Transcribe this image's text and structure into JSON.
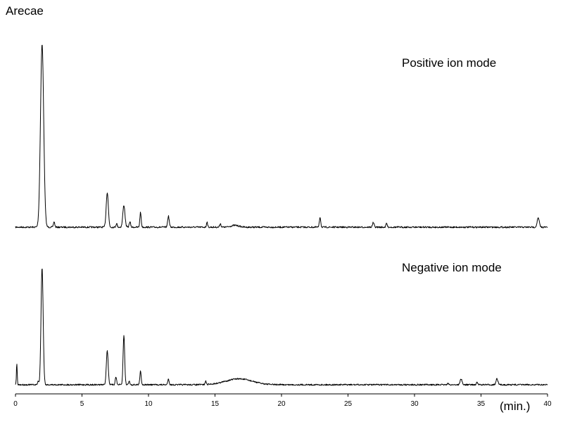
{
  "chart_data": {
    "type": "line",
    "title": "Arecae",
    "xunit": "(min.)",
    "xlim": [
      0,
      40
    ],
    "xticks": [
      0,
      5,
      10,
      15,
      20,
      25,
      30,
      35,
      40
    ],
    "ylim": [
      0,
      100
    ],
    "grid": false,
    "series": [
      {
        "name": "Positive ion mode",
        "peaks": [
          {
            "x": 2.0,
            "y": 100,
            "w": 0.12
          },
          {
            "x": 2.9,
            "y": 3,
            "w": 0.05
          },
          {
            "x": 6.9,
            "y": 19,
            "w": 0.08
          },
          {
            "x": 7.6,
            "y": 2,
            "w": 0.05
          },
          {
            "x": 8.15,
            "y": 12,
            "w": 0.08
          },
          {
            "x": 8.6,
            "y": 3,
            "w": 0.05
          },
          {
            "x": 9.4,
            "y": 8,
            "w": 0.05
          },
          {
            "x": 11.5,
            "y": 6,
            "w": 0.06
          },
          {
            "x": 14.4,
            "y": 3,
            "w": 0.04
          },
          {
            "x": 15.4,
            "y": 2,
            "w": 0.05
          },
          {
            "x": 16.5,
            "y": 1,
            "w": 0.3
          },
          {
            "x": 22.9,
            "y": 5.5,
            "w": 0.05
          },
          {
            "x": 26.9,
            "y": 2.5,
            "w": 0.06
          },
          {
            "x": 27.9,
            "y": 2,
            "w": 0.05
          },
          {
            "x": 39.3,
            "y": 5,
            "w": 0.08
          }
        ]
      },
      {
        "name": "Negative ion mode",
        "peaks": [
          {
            "x": 0.1,
            "y": 18,
            "w": 0.03
          },
          {
            "x": 1.7,
            "y": 3,
            "w": 0.04
          },
          {
            "x": 2.0,
            "y": 100,
            "w": 0.08
          },
          {
            "x": 6.9,
            "y": 29,
            "w": 0.07
          },
          {
            "x": 7.55,
            "y": 7,
            "w": 0.05
          },
          {
            "x": 8.15,
            "y": 42,
            "w": 0.06
          },
          {
            "x": 8.55,
            "y": 3,
            "w": 0.05
          },
          {
            "x": 9.4,
            "y": 12,
            "w": 0.05
          },
          {
            "x": 11.5,
            "y": 5,
            "w": 0.05
          },
          {
            "x": 14.3,
            "y": 3,
            "w": 0.04
          },
          {
            "x": 16.8,
            "y": 5,
            "w": 1.0
          },
          {
            "x": 32.5,
            "y": 1,
            "w": 0.05
          },
          {
            "x": 33.5,
            "y": 5,
            "w": 0.07
          },
          {
            "x": 34.7,
            "y": 2,
            "w": 0.05
          },
          {
            "x": 36.2,
            "y": 5,
            "w": 0.07
          }
        ]
      }
    ]
  }
}
